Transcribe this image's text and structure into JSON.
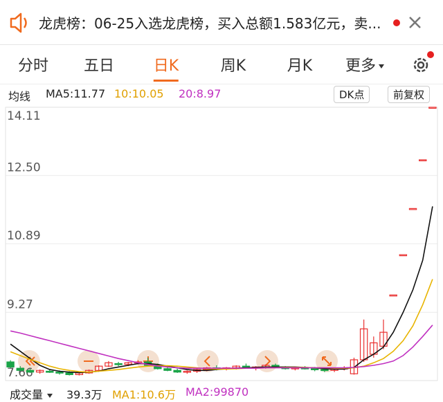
{
  "notice": {
    "text": "龙虎榜：06-25入选龙虎榜，买入总额1.583亿元，卖..."
  },
  "tabs": [
    "分时",
    "五日",
    "日K",
    "周K",
    "月K",
    "更多"
  ],
  "indicator_bar": {
    "title": "均线",
    "items": [
      {
        "label": "MA5:11.77",
        "color": "#222222"
      },
      {
        "label": "10:10.05",
        "color": "#e0a000"
      },
      {
        "label": "20:8.97",
        "color": "#c030c0"
      }
    ],
    "buttons": [
      "DK点",
      "前复权"
    ]
  },
  "chart_data": {
    "type": "candlestick",
    "up_color": "#e93030",
    "down_color": "#1aa448",
    "ylim": [
      7.66,
      14.11
    ],
    "yticks": [
      7.66,
      9.27,
      10.89,
      {
        "value": 12.5,
        "label": "12.50"
      },
      14.11
    ],
    "grid": true,
    "open": [
      8.1,
      7.95,
      7.9,
      7.86,
      7.88,
      7.86,
      7.84,
      7.8,
      7.84,
      7.9,
      8.0,
      8.06,
      8.04,
      8.08,
      8.1,
      8.02,
      7.94,
      7.9,
      7.86,
      7.88,
      7.92,
      7.96,
      7.94,
      7.96,
      8.0,
      7.96,
      7.98,
      8.02,
      7.98,
      7.94,
      7.96,
      7.94,
      7.92,
      7.9,
      7.94,
      7.82,
      8.15,
      8.28,
      8.47,
      9.68,
      10.63,
      11.72,
      12.87,
      14.11
    ],
    "high": [
      8.14,
      8.0,
      7.94,
      7.92,
      7.92,
      7.9,
      7.88,
      7.86,
      7.92,
      8.02,
      8.12,
      8.1,
      8.1,
      8.14,
      8.2,
      8.06,
      7.98,
      7.94,
      7.9,
      7.94,
      7.98,
      8.02,
      7.98,
      8.02,
      8.06,
      8.0,
      8.04,
      8.06,
      8.0,
      7.98,
      8.0,
      7.98,
      7.96,
      7.96,
      8.0,
      8.2,
      9.1,
      8.7,
      9.1,
      9.68,
      10.63,
      11.72,
      12.87,
      14.11
    ],
    "low": [
      7.96,
      7.88,
      7.84,
      7.82,
      7.84,
      7.8,
      7.78,
      7.78,
      7.82,
      7.88,
      7.98,
      8.0,
      8.0,
      8.04,
      8.0,
      7.92,
      7.88,
      7.84,
      7.82,
      7.84,
      7.88,
      7.9,
      7.9,
      7.92,
      7.94,
      7.9,
      7.94,
      7.96,
      7.92,
      7.9,
      7.92,
      7.88,
      7.86,
      7.86,
      7.9,
      7.8,
      8.1,
      8.2,
      8.4,
      9.68,
      10.63,
      11.72,
      12.87,
      14.11
    ],
    "close": [
      7.98,
      7.9,
      7.86,
      7.9,
      7.86,
      7.84,
      7.8,
      7.84,
      7.9,
      8.0,
      8.08,
      8.04,
      8.08,
      8.1,
      8.02,
      7.94,
      7.9,
      7.86,
      7.88,
      7.92,
      7.96,
      7.94,
      7.96,
      8.0,
      7.96,
      7.98,
      8.02,
      7.98,
      7.94,
      7.96,
      7.94,
      7.92,
      7.9,
      7.94,
      7.96,
      8.15,
      8.88,
      8.55,
      8.8,
      9.68,
      10.63,
      11.72,
      12.87,
      14.11
    ],
    "series": [
      {
        "name": "MA5",
        "color": "#111111",
        "values": [
          8.52,
          8.35,
          8.18,
          8.02,
          7.92,
          7.88,
          7.86,
          7.85,
          7.86,
          7.88,
          7.94,
          7.98,
          8.02,
          8.06,
          8.06,
          8.04,
          8.0,
          7.96,
          7.92,
          7.9,
          7.9,
          7.92,
          7.94,
          7.95,
          7.96,
          7.97,
          7.98,
          7.98,
          7.98,
          7.98,
          7.97,
          7.96,
          7.94,
          7.93,
          7.93,
          7.97,
          8.15,
          8.28,
          8.45,
          8.8,
          9.27,
          9.8,
          10.5,
          11.77
        ]
      },
      {
        "name": "MA10",
        "color": "#e8b400",
        "values": [
          8.34,
          8.25,
          8.16,
          8.08,
          8.0,
          7.94,
          7.9,
          7.87,
          7.86,
          7.88,
          7.9,
          7.92,
          7.95,
          7.98,
          8.0,
          8.01,
          8.01,
          8.0,
          7.98,
          7.96,
          7.94,
          7.93,
          7.93,
          7.94,
          7.95,
          7.95,
          7.96,
          7.96,
          7.97,
          7.97,
          7.97,
          7.96,
          7.96,
          7.95,
          7.95,
          7.96,
          8.0,
          8.08,
          8.18,
          8.35,
          8.6,
          8.95,
          9.45,
          10.05
        ]
      },
      {
        "name": "MA20",
        "color": "#c030c0",
        "values": [
          8.83,
          8.78,
          8.72,
          8.66,
          8.6,
          8.54,
          8.48,
          8.42,
          8.36,
          8.3,
          8.24,
          8.18,
          8.13,
          8.08,
          8.04,
          8.0,
          7.98,
          7.96,
          7.95,
          7.95,
          7.95,
          7.95,
          7.95,
          7.95,
          7.95,
          7.95,
          7.96,
          7.96,
          7.96,
          7.96,
          7.96,
          7.96,
          7.96,
          7.96,
          7.96,
          7.97,
          7.99,
          8.02,
          8.06,
          8.12,
          8.25,
          8.45,
          8.7,
          8.97
        ]
      }
    ]
  },
  "volume_bar": {
    "title": "成交量",
    "items": [
      {
        "label": "39.3万",
        "color": "#222222"
      },
      {
        "label": "MA1:10.6万",
        "color": "#e0a000"
      },
      {
        "label": "MA2:99870",
        "color": "#c030c0"
      }
    ]
  }
}
